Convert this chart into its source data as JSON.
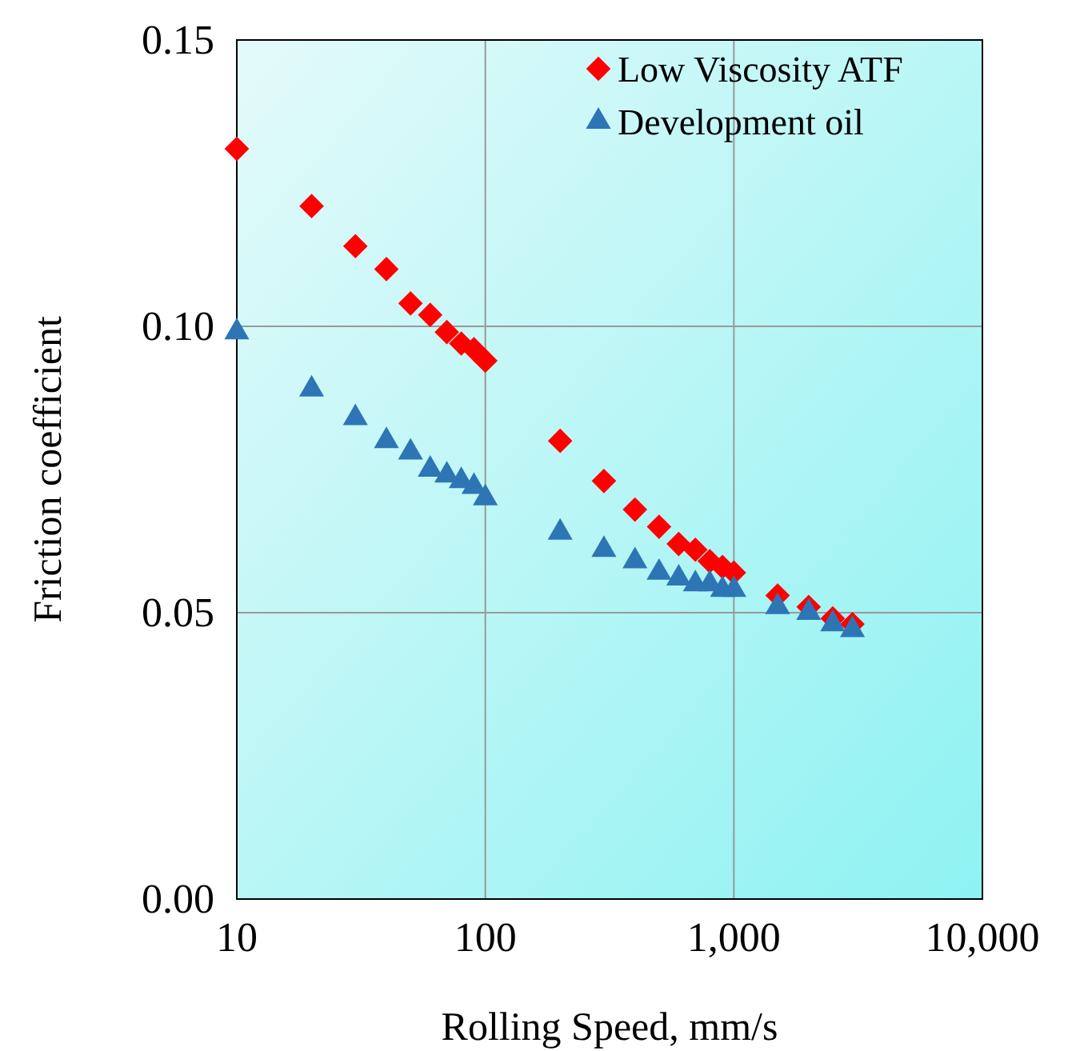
{
  "chart_data": {
    "type": "scatter",
    "xlabel": "Rolling Speed, mm/s",
    "ylabel": "Friction coefficient",
    "log": "x",
    "grid": true,
    "legend": "top right",
    "xlim": [
      10,
      10000
    ],
    "xticks": [
      {
        "value": 10,
        "label": "10"
      },
      {
        "value": 100,
        "label": "100"
      },
      {
        "value": 1000,
        "label": "1,000"
      },
      {
        "value": 10000,
        "label": "10,000"
      }
    ],
    "ylim": [
      0,
      0.15
    ],
    "yticks": [
      {
        "value": 0,
        "label": "0.00"
      },
      {
        "value": 0.05,
        "label": "0.05"
      },
      {
        "value": 0.1,
        "label": "0.10"
      },
      {
        "value": 0.15,
        "label": "0.15"
      }
    ],
    "x": [
      10,
      20,
      30,
      40,
      50,
      60,
      70,
      80,
      90,
      100,
      200,
      300,
      400,
      500,
      600,
      700,
      800,
      900,
      1000,
      1500,
      2000,
      2500,
      3000
    ],
    "series": [
      {
        "name": "Low Viscosity ATF",
        "color": "#ff0000",
        "marker": "diamond",
        "values": [
          0.131,
          0.121,
          0.114,
          0.11,
          0.104,
          0.102,
          0.099,
          0.097,
          0.096,
          0.094,
          0.08,
          0.073,
          0.068,
          0.065,
          0.062,
          0.061,
          0.059,
          0.058,
          0.057,
          0.053,
          0.051,
          0.049,
          0.048
        ]
      },
      {
        "name": "Development oil",
        "color": "#2e75b6",
        "marker": "triangle",
        "values": [
          0.099,
          0.089,
          0.084,
          0.08,
          0.078,
          0.075,
          0.074,
          0.073,
          0.072,
          0.07,
          0.064,
          0.061,
          0.059,
          0.057,
          0.056,
          0.055,
          0.055,
          0.054,
          0.054,
          0.051,
          0.05,
          0.048,
          0.047
        ]
      }
    ]
  }
}
